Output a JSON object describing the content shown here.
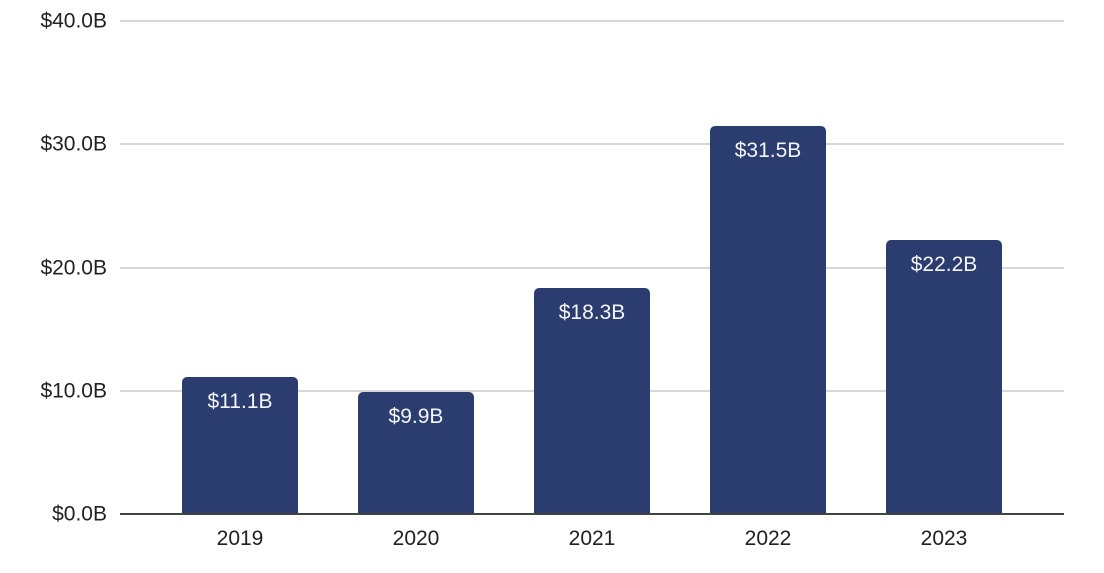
{
  "colors": {
    "background": "#ffffff",
    "bar": "#2b3c6f",
    "bar_label": "#f4f5f7",
    "gridline": "#d8d8d8",
    "axis_line": "#424242",
    "tick_text": "#212121"
  },
  "chart_data": {
    "type": "bar",
    "title": "",
    "xlabel": "",
    "ylabel": "",
    "categories": [
      "2019",
      "2020",
      "2021",
      "2022",
      "2023"
    ],
    "values": [
      11.1,
      9.9,
      18.3,
      31.5,
      22.2
    ],
    "bar_labels": [
      "$11.1B",
      "$9.9B",
      "$18.3B",
      "$31.5B",
      "$22.2B"
    ],
    "ylim": [
      0,
      40
    ],
    "yticks": [
      {
        "value": 0,
        "label": "$0.0B"
      },
      {
        "value": 10,
        "label": "$10.0B"
      },
      {
        "value": 20,
        "label": "$20.0B"
      },
      {
        "value": 30,
        "label": "$30.0B"
      },
      {
        "value": 40,
        "label": "$40.0B"
      }
    ],
    "grid": true,
    "legend": false
  }
}
